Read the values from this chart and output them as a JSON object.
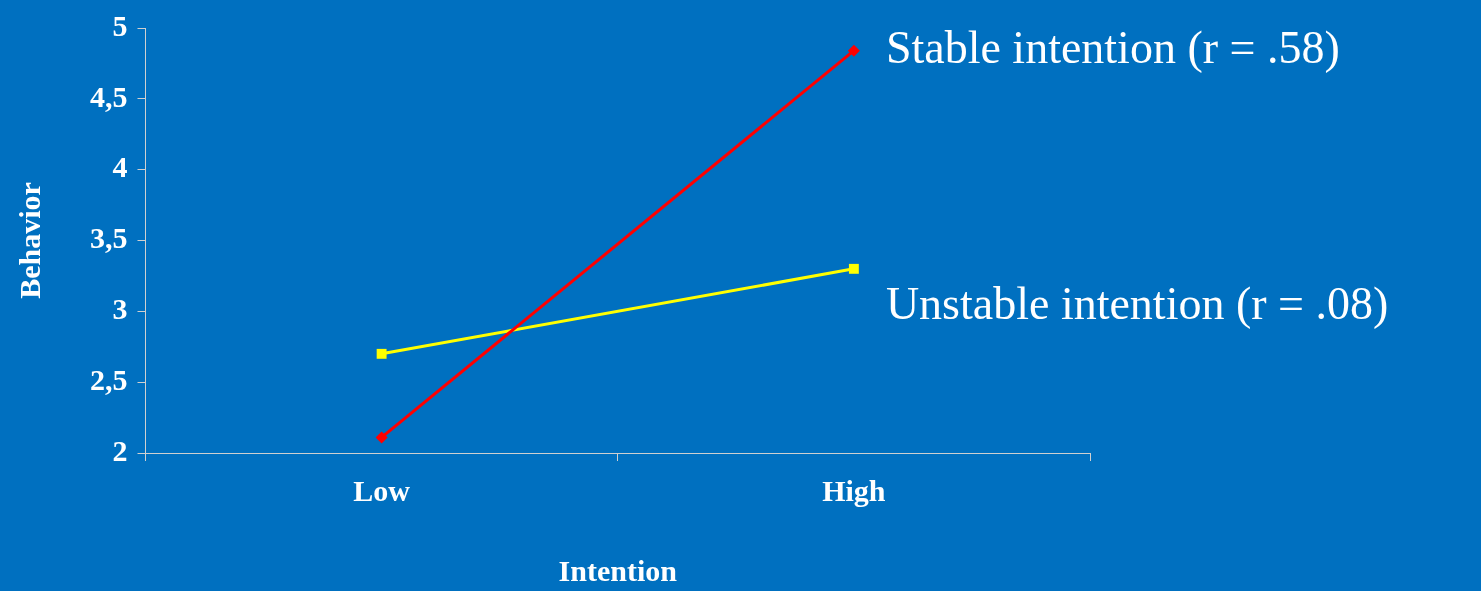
{
  "chart_data": {
    "type": "line",
    "xlabel": "Intention",
    "ylabel": "Behavior",
    "categories": [
      "Low",
      "High"
    ],
    "series": [
      {
        "name": "Stable intention (r = .58)",
        "color": "#ff0000",
        "marker": "diamond",
        "values": [
          2.11,
          4.84
        ]
      },
      {
        "name": "Unstable intention (r = .08)",
        "color": "#ffff00",
        "marker": "square",
        "values": [
          2.7,
          3.3
        ]
      }
    ],
    "ylim": [
      2,
      5
    ],
    "yticks": [
      2,
      {
        "value": 2.5,
        "label": "2,5"
      },
      3,
      {
        "value": 3.5,
        "label": "3,5"
      },
      4,
      {
        "value": 4.5,
        "label": "4,5"
      },
      5
    ],
    "grid": false,
    "legend": false
  }
}
